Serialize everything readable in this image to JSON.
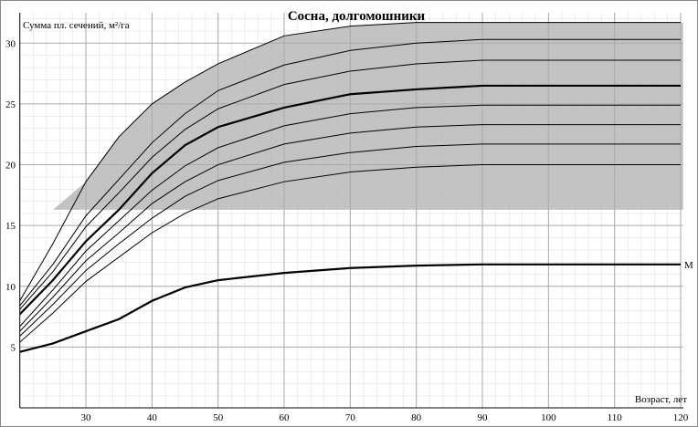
{
  "chart_data": {
    "type": "line",
    "title": "Сосна, долгомошники",
    "y_label": "Сумма пл. сечений, м²/га",
    "x_label": "Возраст, лет",
    "x": [
      20,
      25,
      30,
      35,
      40,
      45,
      50,
      60,
      70,
      80,
      90,
      100,
      110,
      120
    ],
    "xlim": [
      20,
      120
    ],
    "xticks": [
      30,
      40,
      50,
      60,
      70,
      80,
      90,
      100,
      110,
      120
    ],
    "ylim": [
      0,
      32.5
    ],
    "yticks": [
      5,
      10,
      15,
      20,
      25,
      30
    ],
    "grid": true,
    "shade_color": "#b4b4b4",
    "shade_bottom": 16.3,
    "series": [
      {
        "color": "#000000",
        "line_width": 1,
        "values": [
          8.8,
          13.5,
          18.6,
          22.3,
          25.0,
          26.8,
          28.3,
          30.6,
          31.4,
          31.7,
          31.7,
          31.7,
          31.7,
          31.7
        ]
      },
      {
        "color": "#000000",
        "line_width": 1,
        "values": [
          8.4,
          11.8,
          15.8,
          18.8,
          21.8,
          24.2,
          26.1,
          28.2,
          29.4,
          30.0,
          30.3,
          30.3,
          30.3,
          30.3
        ]
      },
      {
        "color": "#000000",
        "line_width": 1,
        "values": [
          8.1,
          11.2,
          14.9,
          17.7,
          20.6,
          22.9,
          24.6,
          26.6,
          27.7,
          28.3,
          28.6,
          28.6,
          28.6,
          28.6
        ]
      },
      {
        "color": "#000000",
        "line_width": 2.2,
        "values": [
          7.7,
          10.5,
          13.7,
          16.3,
          19.3,
          21.6,
          23.1,
          24.7,
          25.8,
          26.2,
          26.5,
          26.5,
          26.5,
          26.5
        ]
      },
      {
        "color": "#000000",
        "line_width": 1,
        "values": [
          6.7,
          9.7,
          12.9,
          15.4,
          17.9,
          19.9,
          21.4,
          23.2,
          24.2,
          24.7,
          24.9,
          24.9,
          24.9,
          24.9
        ]
      },
      {
        "color": "#000000",
        "line_width": 1,
        "values": [
          6.3,
          9.1,
          12.1,
          14.4,
          16.8,
          18.6,
          20.0,
          21.7,
          22.6,
          23.1,
          23.3,
          23.3,
          23.3,
          23.3
        ]
      },
      {
        "color": "#000000",
        "line_width": 1,
        "values": [
          5.9,
          8.5,
          11.3,
          13.5,
          15.6,
          17.4,
          18.7,
          20.2,
          21.0,
          21.5,
          21.7,
          21.7,
          21.7,
          21.7
        ]
      },
      {
        "color": "#000000",
        "line_width": 1,
        "values": [
          5.4,
          7.8,
          10.4,
          12.4,
          14.4,
          16.0,
          17.2,
          18.6,
          19.4,
          19.8,
          20.0,
          20.0,
          20.0,
          20.0
        ]
      },
      {
        "color": "#000000",
        "line_width": 2.2,
        "end_label": "M",
        "values": [
          4.6,
          5.3,
          6.3,
          7.3,
          8.8,
          9.9,
          10.5,
          11.1,
          11.5,
          11.7,
          11.8,
          11.8,
          11.8,
          11.8
        ]
      }
    ]
  }
}
